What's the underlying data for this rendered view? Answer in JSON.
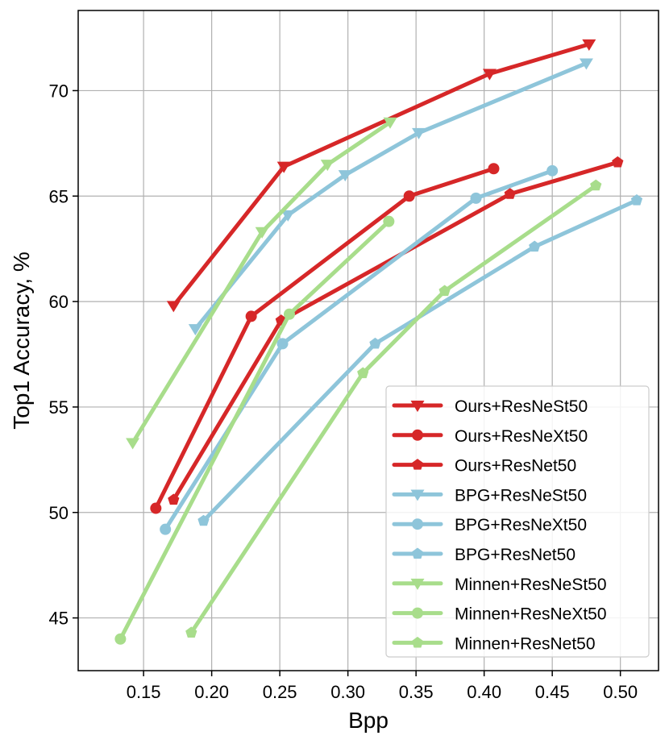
{
  "colors": {
    "ours": "#d62728",
    "bpg": "#8ec5da",
    "minnen": "#a8dd8b"
  },
  "chart_data": {
    "type": "line",
    "title": "",
    "xlabel": "Bpp",
    "ylabel": "Top1 Accuracy, %",
    "xlim": [
      0.102,
      0.528
    ],
    "ylim": [
      42.5,
      73.8
    ],
    "xticks": [
      0.15,
      0.2,
      0.25,
      0.3,
      0.35,
      0.4,
      0.45,
      0.5
    ],
    "xtick_labels": [
      "0.15",
      "0.20",
      "0.25",
      "0.30",
      "0.35",
      "0.40",
      "0.45",
      "0.50"
    ],
    "yticks": [
      45,
      50,
      55,
      60,
      65,
      70
    ],
    "ytick_labels": [
      "45",
      "50",
      "55",
      "60",
      "65",
      "70"
    ],
    "grid": true,
    "legend_position": "bottom-right",
    "series": [
      {
        "name": "Ours+ResNeSt50",
        "color": "#d62728",
        "marker": "triangle-down",
        "x": [
          0.172,
          0.253,
          0.404,
          0.477
        ],
        "y": [
          59.8,
          66.4,
          70.8,
          72.2
        ]
      },
      {
        "name": "Ours+ResNeXt50",
        "color": "#d62728",
        "marker": "circle",
        "x": [
          0.159,
          0.229,
          0.345,
          0.407
        ],
        "y": [
          50.2,
          59.3,
          65.0,
          66.3
        ]
      },
      {
        "name": "Ours+ResNet50",
        "color": "#d62728",
        "marker": "pentagon",
        "x": [
          0.172,
          0.251,
          0.419,
          0.498
        ],
        "y": [
          50.6,
          59.1,
          65.1,
          66.6
        ]
      },
      {
        "name": "BPG+ResNeSt50",
        "color": "#8ec5da",
        "marker": "triangle-down",
        "x": [
          0.188,
          0.256,
          0.298,
          0.352,
          0.475
        ],
        "y": [
          58.7,
          64.1,
          66.0,
          68.0,
          71.3
        ]
      },
      {
        "name": "BPG+ResNeXt50",
        "color": "#8ec5da",
        "marker": "circle",
        "x": [
          0.166,
          0.252,
          0.394,
          0.45
        ],
        "y": [
          49.2,
          58.0,
          64.9,
          66.2
        ]
      },
      {
        "name": "BPG+ResNet50",
        "color": "#8ec5da",
        "marker": "pentagon",
        "x": [
          0.194,
          0.32,
          0.437,
          0.512
        ],
        "y": [
          49.6,
          58.0,
          62.6,
          64.8
        ]
      },
      {
        "name": "Minnen+ResNeSt50",
        "color": "#a8dd8b",
        "marker": "triangle-down",
        "x": [
          0.142,
          0.237,
          0.285,
          0.331
        ],
        "y": [
          53.3,
          63.3,
          66.5,
          68.5
        ]
      },
      {
        "name": "Minnen+ResNeXt50",
        "color": "#a8dd8b",
        "marker": "circle",
        "x": [
          0.133,
          0.257,
          0.33
        ],
        "y": [
          44.0,
          59.4,
          63.8
        ]
      },
      {
        "name": "Minnen+ResNet50",
        "color": "#a8dd8b",
        "marker": "pentagon",
        "x": [
          0.185,
          0.311,
          0.371,
          0.482
        ],
        "y": [
          44.3,
          56.6,
          60.5,
          65.5
        ]
      }
    ]
  }
}
